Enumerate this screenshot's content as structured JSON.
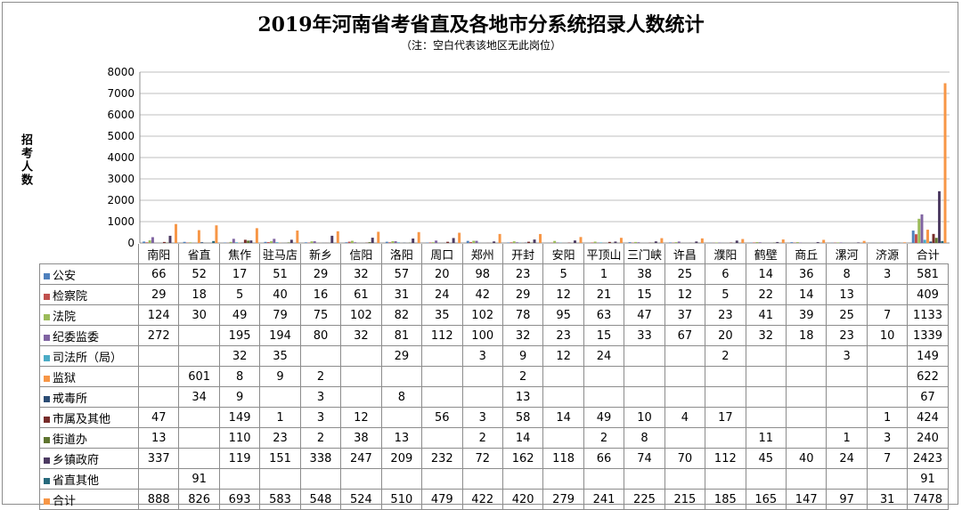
{
  "title": "2019年河南省考省直及各地市分系统招录人数统计",
  "subtitle": "（注：空白代表该地区无此岗位）",
  "ylabel": "招考人数",
  "chart_data": {
    "type": "bar",
    "categories": [
      "南阳",
      "省直",
      "焦作",
      "驻马店",
      "新乡",
      "信阳",
      "洛阳",
      "周口",
      "郑州",
      "开封",
      "安阳",
      "平顶山",
      "三门峡",
      "许昌",
      "濮阳",
      "鹤壁",
      "商丘",
      "漯河",
      "济源",
      "合计"
    ],
    "ylim": [
      0,
      8000
    ],
    "yticks": [
      0,
      1000,
      2000,
      3000,
      4000,
      5000,
      6000,
      7000,
      8000
    ],
    "grid": true,
    "series": [
      {
        "name": "公安",
        "color": "#4f81bd",
        "values": [
          66,
          52,
          17,
          51,
          29,
          32,
          57,
          20,
          98,
          23,
          5,
          1,
          38,
          25,
          6,
          14,
          36,
          8,
          3,
          581
        ]
      },
      {
        "name": "检察院",
        "color": "#c0504d",
        "values": [
          29,
          18,
          5,
          40,
          16,
          61,
          31,
          24,
          42,
          29,
          12,
          21,
          15,
          12,
          5,
          22,
          14,
          13,
          null,
          409
        ]
      },
      {
        "name": "法院",
        "color": "#9bbb59",
        "values": [
          124,
          30,
          49,
          79,
          75,
          102,
          82,
          35,
          102,
          78,
          95,
          63,
          47,
          37,
          23,
          41,
          39,
          25,
          7,
          1133
        ]
      },
      {
        "name": "纪委监委",
        "color": "#8064a2",
        "values": [
          272,
          null,
          195,
          194,
          80,
          32,
          81,
          112,
          100,
          32,
          23,
          15,
          33,
          67,
          20,
          32,
          18,
          23,
          10,
          1339
        ]
      },
      {
        "name": "司法所（局）",
        "color": "#4bacc6",
        "values": [
          null,
          null,
          32,
          35,
          null,
          null,
          29,
          null,
          3,
          9,
          12,
          24,
          null,
          null,
          2,
          null,
          null,
          3,
          null,
          149
        ]
      },
      {
        "name": "监狱",
        "color": "#f79646",
        "values": [
          null,
          601,
          8,
          9,
          2,
          null,
          null,
          null,
          null,
          2,
          null,
          null,
          null,
          null,
          null,
          null,
          null,
          null,
          null,
          622
        ]
      },
      {
        "name": "戒毒所",
        "color": "#2c4d75",
        "values": [
          null,
          34,
          9,
          null,
          3,
          null,
          8,
          null,
          null,
          13,
          null,
          null,
          null,
          null,
          null,
          null,
          null,
          null,
          null,
          67
        ]
      },
      {
        "name": "市属及其他",
        "color": "#772c2a",
        "values": [
          47,
          null,
          149,
          1,
          3,
          12,
          null,
          56,
          3,
          58,
          14,
          49,
          10,
          4,
          17,
          null,
          null,
          null,
          1,
          424
        ]
      },
      {
        "name": "街道办",
        "color": "#5f7530",
        "values": [
          13,
          null,
          110,
          23,
          2,
          38,
          13,
          null,
          2,
          14,
          null,
          2,
          8,
          null,
          null,
          11,
          null,
          1,
          3,
          240
        ]
      },
      {
        "name": "乡镇政府",
        "color": "#4d3b62",
        "values": [
          337,
          null,
          119,
          151,
          338,
          247,
          209,
          232,
          72,
          162,
          118,
          66,
          74,
          70,
          112,
          45,
          40,
          24,
          7,
          2423
        ]
      },
      {
        "name": "省直其他",
        "color": "#276a7c",
        "values": [
          null,
          91,
          null,
          null,
          null,
          null,
          null,
          null,
          null,
          null,
          null,
          null,
          null,
          null,
          null,
          null,
          null,
          null,
          null,
          91
        ]
      },
      {
        "name": "合计",
        "color": "#f79646",
        "values": [
          888,
          826,
          693,
          583,
          548,
          524,
          510,
          479,
          422,
          420,
          279,
          241,
          225,
          215,
          185,
          165,
          147,
          97,
          31,
          7478
        ]
      }
    ]
  }
}
